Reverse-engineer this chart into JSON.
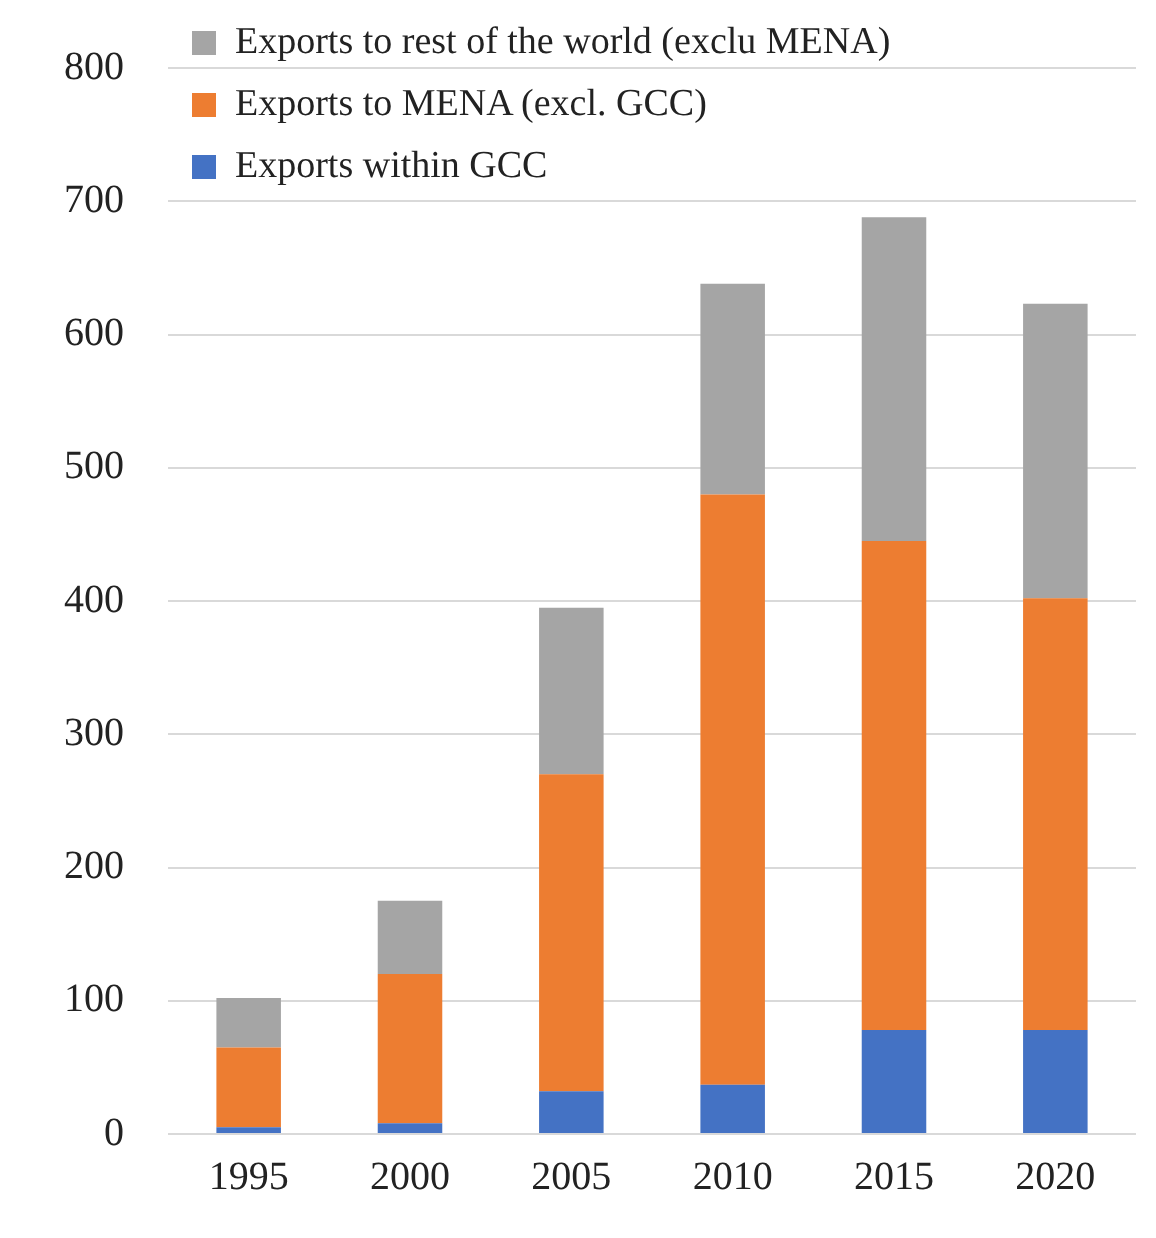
{
  "chart_data": {
    "type": "bar",
    "stacked": true,
    "categories": [
      "1995",
      "2000",
      "2005",
      "2010",
      "2015",
      "2020"
    ],
    "series": [
      {
        "name": "Exports within GCC",
        "color": "#4472c4",
        "values": [
          5,
          8,
          32,
          37,
          78,
          78
        ]
      },
      {
        "name": "Exports to MENA (excl. GCC)",
        "color": "#ed7d31",
        "values": [
          60,
          112,
          238,
          443,
          367,
          324
        ]
      },
      {
        "name": "Exports to rest of the world (exclu MENA)",
        "color": "#a5a5a5",
        "values": [
          37,
          55,
          125,
          158,
          243,
          221
        ]
      }
    ],
    "ylim": [
      0,
      800
    ],
    "yticks": [
      0,
      100,
      200,
      300,
      400,
      500,
      600,
      700,
      800
    ],
    "grid": "y",
    "legend": "top left"
  }
}
